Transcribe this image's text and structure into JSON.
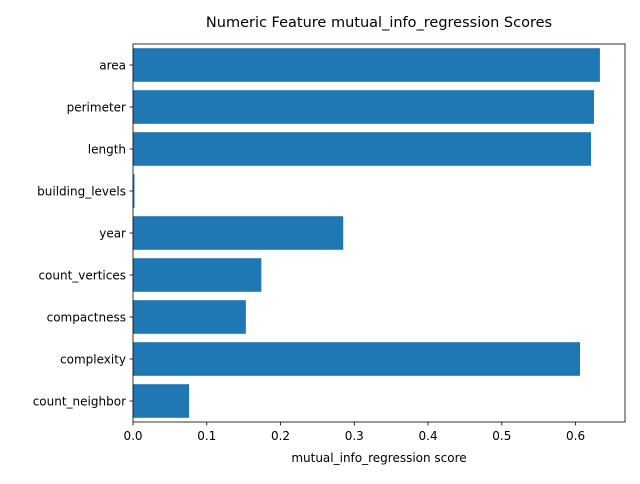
{
  "chart_data": {
    "type": "bar",
    "orientation": "horizontal",
    "title": "Numeric Feature mutual_info_regression Scores",
    "xlabel": "mutual_info_regression score",
    "ylabel": "",
    "categories": [
      "area",
      "perimeter",
      "length",
      "building_levels",
      "year",
      "count_vertices",
      "compactness",
      "complexity",
      "count_neighbor"
    ],
    "values": [
      0.633,
      0.625,
      0.621,
      0.002,
      0.285,
      0.174,
      0.153,
      0.606,
      0.076
    ],
    "xlim": [
      0,
      0.667
    ],
    "xticks": [
      "0.0",
      "0.1",
      "0.2",
      "0.3",
      "0.4",
      "0.5",
      "0.6"
    ],
    "grid": false,
    "colors": {
      "bar": "#1f77b4",
      "axis": "#000000"
    }
  }
}
